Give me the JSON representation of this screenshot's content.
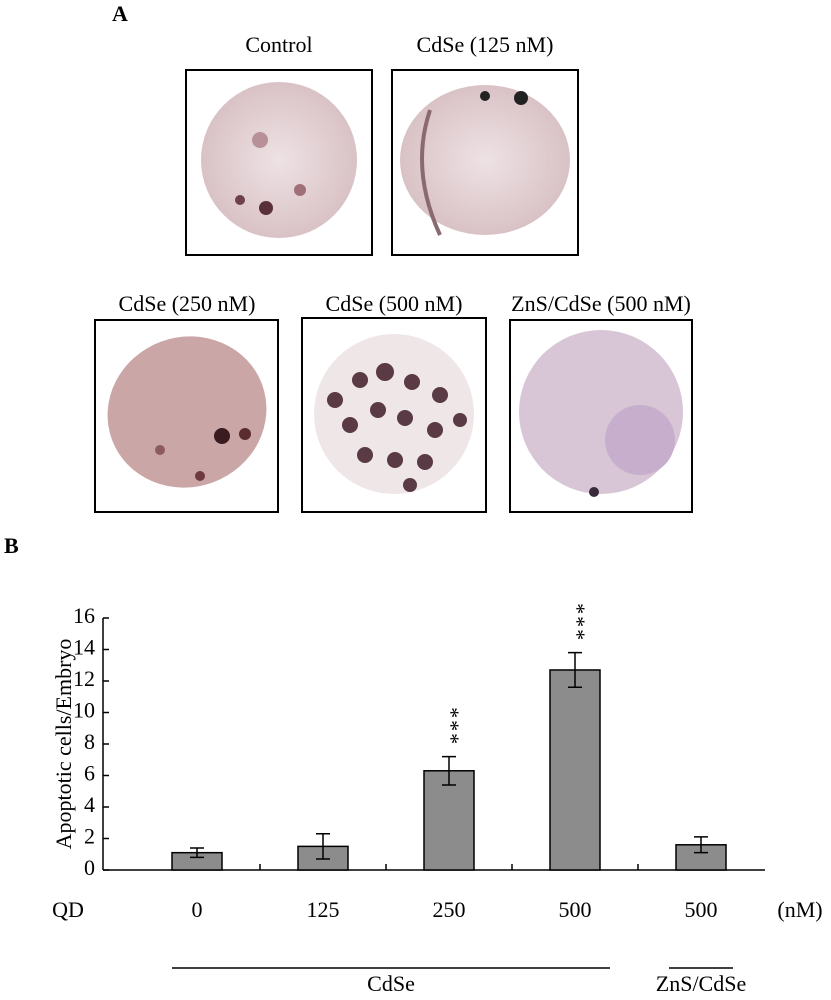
{
  "panel_a": {
    "label": "A",
    "images": [
      {
        "caption": "Control"
      },
      {
        "caption": "CdSe (125 nM)"
      },
      {
        "caption": "CdSe (250 nM)"
      },
      {
        "caption": "CdSe (500 nM)"
      },
      {
        "caption": "ZnS/CdSe (500 nM)"
      }
    ]
  },
  "chart_data": {
    "type": "bar",
    "panel_label": "B",
    "ylabel": "Apoptotic cells/Embryo",
    "x_prefix": "QD",
    "x_unit": "(nM)",
    "categories": [
      "0",
      "125",
      "250",
      "500",
      "500"
    ],
    "values": [
      1.1,
      1.5,
      6.3,
      12.7,
      1.6
    ],
    "errors": [
      0.3,
      0.8,
      0.9,
      1.1,
      0.5
    ],
    "significance": [
      null,
      null,
      "***",
      "***",
      null
    ],
    "groups": [
      {
        "name": "CdSe",
        "span": [
          0,
          3
        ]
      },
      {
        "name": "ZnS/CdSe",
        "span": [
          4,
          4
        ]
      }
    ],
    "color": "#8c8c8c",
    "ylim": [
      0,
      16
    ],
    "yticks": [
      0,
      2,
      4,
      6,
      8,
      10,
      12,
      14,
      16
    ]
  }
}
